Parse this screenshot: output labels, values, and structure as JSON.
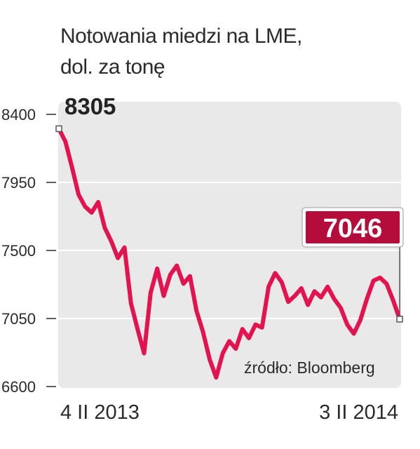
{
  "title_line1": "Notowania miedzi na LME,",
  "title_line2": "dol. za tonę",
  "source": "źródło: Bloomberg",
  "colors": {
    "line": "#e2134f",
    "callout_bg": "#b50d3b",
    "plot_bg": "#e9e9e9",
    "grid": "#ffffff",
    "text": "#2b2b2b"
  },
  "chart_data": {
    "type": "line",
    "title": "Notowania miedzi na LME, dol. za tonę",
    "xlabel": "",
    "ylabel": "",
    "ylim": [
      6600,
      8400
    ],
    "y_ticks": [
      8400,
      7950,
      7500,
      7050,
      6600
    ],
    "x_tick_labels": [
      "4 II 2013",
      "3 II 2014"
    ],
    "x_range": [
      "2013-02-04",
      "2014-02-03"
    ],
    "grid": true,
    "annotations": [
      {
        "text": "8305",
        "at": "2013-02-04",
        "value": 8305,
        "style": "bold"
      },
      {
        "text": "7046",
        "at": "2014-02-03",
        "value": 7046,
        "style": "callout"
      }
    ],
    "series": [
      {
        "x": [
          "2013-02-04",
          "2013-02-11",
          "2013-02-18",
          "2013-02-25",
          "2013-03-04",
          "2013-03-11",
          "2013-03-18",
          "2013-03-25",
          "2013-04-01",
          "2013-04-08",
          "2013-04-15",
          "2013-04-22",
          "2013-04-29",
          "2013-05-06",
          "2013-05-13",
          "2013-05-20",
          "2013-05-27",
          "2013-06-03",
          "2013-06-10",
          "2013-06-17",
          "2013-06-24",
          "2013-07-01",
          "2013-07-08",
          "2013-07-15",
          "2013-07-22",
          "2013-07-29",
          "2013-08-05",
          "2013-08-12",
          "2013-08-19",
          "2013-08-26",
          "2013-09-02",
          "2013-09-09",
          "2013-09-16",
          "2013-09-23",
          "2013-09-30",
          "2013-10-07",
          "2013-10-14",
          "2013-10-21",
          "2013-10-28",
          "2013-11-04",
          "2013-11-11",
          "2013-11-18",
          "2013-11-25",
          "2013-12-02",
          "2013-12-09",
          "2013-12-16",
          "2013-12-23",
          "2013-12-30",
          "2014-01-06",
          "2014-01-13",
          "2014-01-20",
          "2014-01-27",
          "2014-02-03"
        ],
        "values": [
          8305,
          8220,
          8050,
          7870,
          7790,
          7750,
          7820,
          7650,
          7560,
          7450,
          7520,
          7150,
          6980,
          6820,
          7220,
          7380,
          7200,
          7340,
          7400,
          7280,
          7330,
          7100,
          6960,
          6780,
          6660,
          6820,
          6900,
          6850,
          6980,
          6920,
          7010,
          6990,
          7260,
          7350,
          7290,
          7160,
          7200,
          7250,
          7140,
          7230,
          7190,
          7260,
          7180,
          7120,
          7010,
          6950,
          7040,
          7180,
          7300,
          7320,
          7280,
          7170,
          7046
        ]
      }
    ]
  }
}
